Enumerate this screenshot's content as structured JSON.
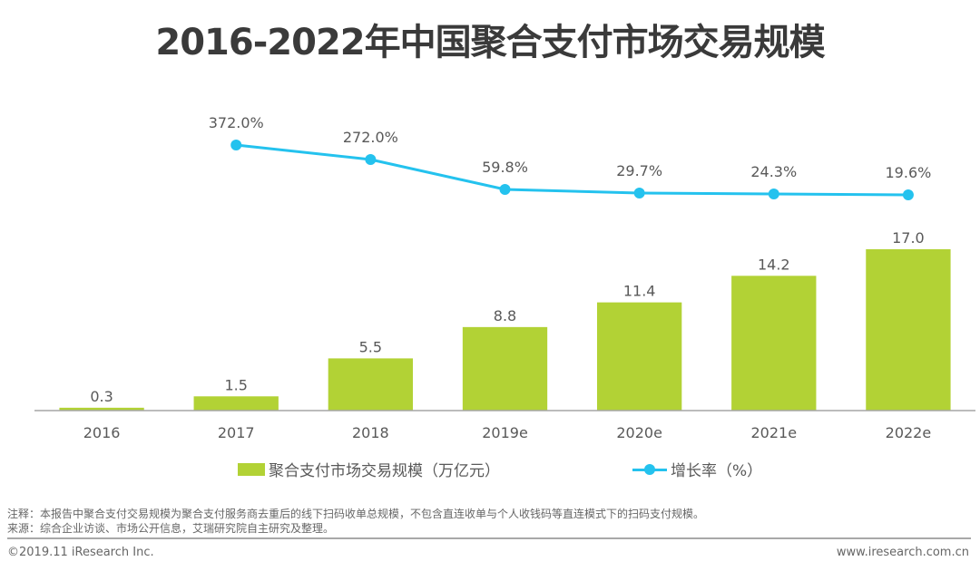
{
  "title": "2016-2022年中国聚合支付市场交易规模",
  "chart_data": {
    "type": "bar",
    "title": "2016-2022年中国聚合支付市场交易规模",
    "categories": [
      "2016",
      "2017",
      "2018",
      "2019e",
      "2020e",
      "2021e",
      "2022e"
    ],
    "series": [
      {
        "name": "聚合支付市场交易规模（万亿元）",
        "type": "bar",
        "color": "#b2d235",
        "values": [
          0.3,
          1.5,
          5.5,
          8.8,
          11.4,
          14.2,
          17.0
        ],
        "labels": [
          "0.3",
          "1.5",
          "5.5",
          "8.8",
          "11.4",
          "14.2",
          "17.0"
        ]
      },
      {
        "name": "增长率（%）",
        "type": "line",
        "color": "#24c2ee",
        "values": [
          null,
          372.0,
          272.0,
          59.8,
          29.7,
          24.3,
          19.6
        ],
        "labels": [
          null,
          "372.0%",
          "272.0%",
          "59.8%",
          "29.7%",
          "24.3%",
          "19.6%"
        ]
      }
    ],
    "xlabel": "",
    "ylabel": "",
    "ylim": [
      0,
      18
    ],
    "y2lim": [
      -600,
      400
    ],
    "grid": false,
    "legend_position": "bottom"
  },
  "legend": {
    "bar_label": "聚合支付市场交易规模（万亿元）",
    "line_label": "增长率（%）"
  },
  "notes": {
    "note": "注释：本报告中聚合支付交易规模为聚合支付服务商去重后的线下扫码收单总规模，不包含直连收单与个人收钱码等直连模式下的扫码支付规模。",
    "source": "来源：综合企业访谈、市场公开信息，艾瑞研究院自主研究及整理。"
  },
  "footer": {
    "copyright": "©2019.11 iResearch Inc.",
    "website": "www.iresearch.com.cn"
  }
}
